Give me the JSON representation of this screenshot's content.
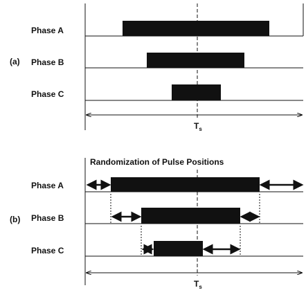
{
  "panels": [
    {
      "label": "(a)",
      "rows": [
        {
          "label": "Phase A"
        },
        {
          "label": "Phase B"
        },
        {
          "label": "Phase C"
        }
      ],
      "period": {
        "base": "T",
        "sub": "s"
      }
    },
    {
      "label": "(b)",
      "title": "Randomization of Pulse Positions",
      "rows": [
        {
          "label": "Phase A"
        },
        {
          "label": "Phase B"
        },
        {
          "label": "Phase C"
        }
      ],
      "period": {
        "base": "T",
        "sub": "s"
      }
    }
  ]
}
